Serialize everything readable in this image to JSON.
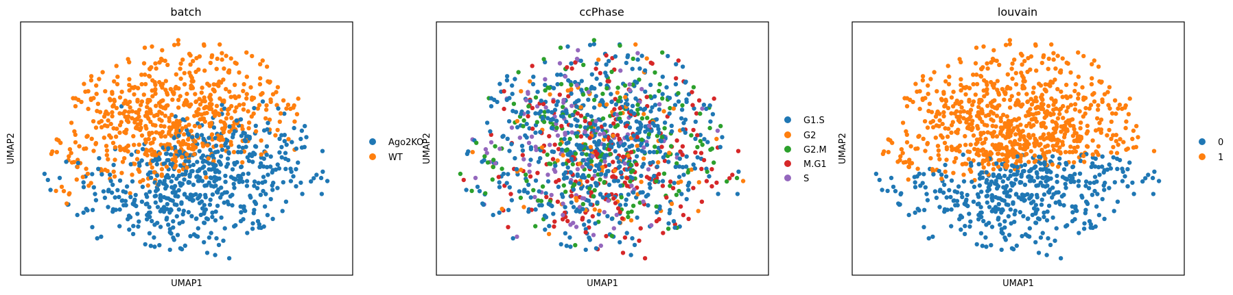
{
  "chart_data": [
    {
      "type": "scatter",
      "title": "batch",
      "xlabel": "UMAP1",
      "ylabel": "UMAP2",
      "x_ticks": "none",
      "y_ticks": "none",
      "grid": false,
      "legend_placement": "right",
      "legend": [
        {
          "label": "Ago2KO",
          "color": "#1f77b4"
        },
        {
          "label": "WT",
          "color": "#ff7f0e"
        }
      ],
      "color_by": "batch",
      "separation": "Ago2KO lower-left region, WT upper-right region"
    },
    {
      "type": "scatter",
      "title": "ccPhase",
      "xlabel": "UMAP1",
      "ylabel": "UMAP2",
      "x_ticks": "none",
      "y_ticks": "none",
      "grid": false,
      "legend_placement": "right",
      "legend": [
        {
          "label": "G1.S",
          "color": "#1f77b4"
        },
        {
          "label": "G2",
          "color": "#ff7f0e"
        },
        {
          "label": "G2.M",
          "color": "#2ca02c"
        },
        {
          "label": "M.G1",
          "color": "#d62728"
        },
        {
          "label": "S",
          "color": "#9467bd"
        }
      ],
      "color_by": "ccPhase",
      "separation": "mixed; M.G1 denser lower-right, S and G2.M denser left"
    },
    {
      "type": "scatter",
      "title": "louvain",
      "xlabel": "UMAP1",
      "ylabel": "UMAP2",
      "x_ticks": "none",
      "y_ticks": "none",
      "grid": false,
      "legend_placement": "right",
      "legend": [
        {
          "label": "0",
          "color": "#1f77b4"
        },
        {
          "label": "1",
          "color": "#ff7f0e"
        }
      ],
      "color_by": "louvain",
      "separation": "0 lower region, 1 upper region"
    }
  ]
}
